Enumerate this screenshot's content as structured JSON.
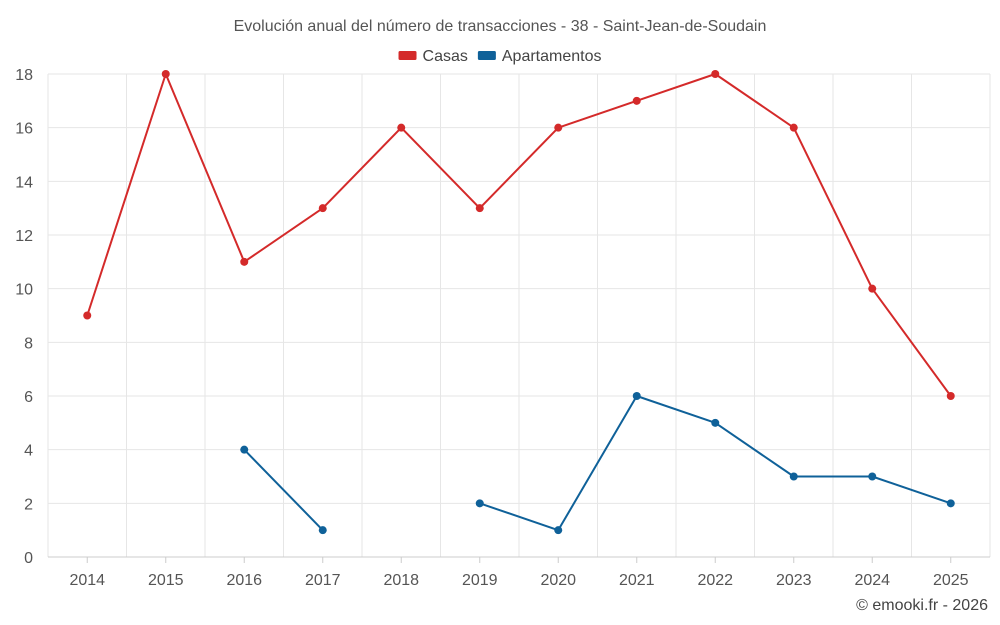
{
  "chart_data": {
    "type": "line",
    "title": "Evolución anual del número de transacciones - 38 - Saint-Jean-de-Soudain",
    "categories": [
      "2014",
      "2015",
      "2016",
      "2017",
      "2018",
      "2019",
      "2020",
      "2021",
      "2022",
      "2023",
      "2024",
      "2025"
    ],
    "series": [
      {
        "name": "Casas",
        "color": "#d42a2a",
        "values": [
          9,
          18,
          11,
          13,
          16,
          13,
          16,
          17,
          18,
          16,
          10,
          6
        ]
      },
      {
        "name": "Apartamentos",
        "color": "#0f6199",
        "values": [
          null,
          null,
          4,
          1,
          null,
          2,
          1,
          6,
          5,
          3,
          3,
          2
        ]
      }
    ],
    "ylim": [
      0,
      18
    ],
    "yticks": [
      0,
      2,
      4,
      6,
      8,
      10,
      12,
      14,
      16,
      18
    ],
    "xlabel": "",
    "ylabel": "",
    "grid": true,
    "legend_position": "top-center"
  },
  "credit": "© emooki.fr - 2026"
}
